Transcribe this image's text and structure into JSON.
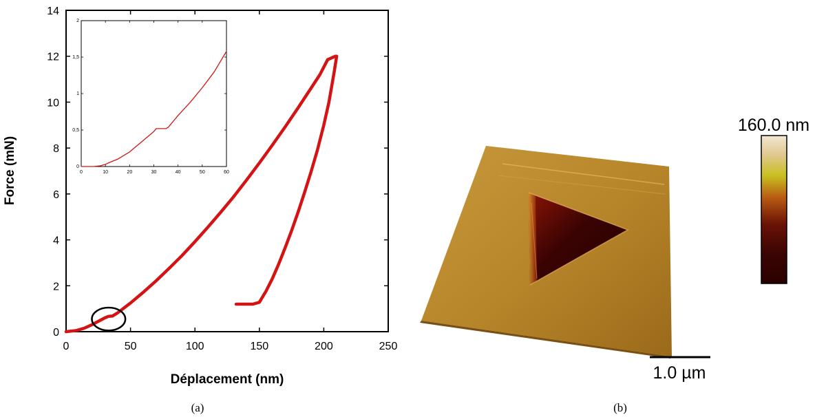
{
  "chart_data": [
    {
      "type": "line",
      "panel": "(a)",
      "xlabel": "Déplacement (nm)",
      "ylabel": "Force (mN)",
      "xlim": [
        0,
        250
      ],
      "ylim": [
        0,
        14
      ],
      "xticks": [
        0,
        50,
        100,
        150,
        200,
        250
      ],
      "yticks": [
        0,
        2,
        4,
        6,
        8,
        10,
        12,
        14
      ],
      "series": [
        {
          "color": "#d41414",
          "x": [
            0,
            8,
            14,
            20,
            25,
            30,
            33,
            36,
            40,
            50,
            60,
            70,
            80,
            90,
            100,
            110,
            120,
            130,
            140,
            150,
            160,
            170,
            180,
            190,
            197,
            203,
            209,
            210,
            208,
            204,
            200,
            195,
            190,
            185,
            180,
            175,
            170,
            165,
            160,
            155,
            150,
            145,
            140,
            136,
            132
          ],
          "y": [
            0,
            0.05,
            0.15,
            0.3,
            0.45,
            0.6,
            0.67,
            0.68,
            0.82,
            1.25,
            1.72,
            2.22,
            2.76,
            3.32,
            3.92,
            4.55,
            5.2,
            5.88,
            6.6,
            7.35,
            8.12,
            8.92,
            9.75,
            10.6,
            11.2,
            11.85,
            12.0,
            12.0,
            11.3,
            10.0,
            9.0,
            7.9,
            6.95,
            6.05,
            5.2,
            4.4,
            3.65,
            2.95,
            2.3,
            1.75,
            1.28,
            1.2,
            1.2,
            1.2,
            1.2
          ]
        }
      ],
      "annotations": [
        {
          "type": "ellipse",
          "cx": 33,
          "cy": 0.55,
          "rx": 13,
          "ry": 0.5
        }
      ]
    },
    {
      "type": "line",
      "inset_of": "(a)",
      "xlim": [
        0,
        60
      ],
      "ylim": [
        0,
        2
      ],
      "xticks": [
        0,
        10,
        20,
        30,
        40,
        50,
        60
      ],
      "yticks": [
        0,
        0.5,
        1,
        1.5,
        2
      ],
      "ytick_labels": [
        "0",
        "0,5",
        "1",
        "1,5",
        "2"
      ],
      "series": [
        {
          "color": "#d41414",
          "x": [
            0,
            5,
            8,
            10,
            12,
            15,
            20,
            25,
            30,
            31,
            33,
            35,
            36,
            40,
            45,
            50,
            55,
            60
          ],
          "y": [
            0,
            0.0,
            0.01,
            0.03,
            0.06,
            0.1,
            0.2,
            0.34,
            0.48,
            0.52,
            0.52,
            0.52,
            0.54,
            0.7,
            0.88,
            1.08,
            1.3,
            1.58
          ]
        }
      ]
    }
  ],
  "panel_a": {
    "caption": "(a)"
  },
  "panel_b": {
    "caption": "(b)",
    "colorbar_max_label": "160.0 nm",
    "scale_bar_label": "1.0 µm",
    "colors": {
      "surface_light": "#c99a3c",
      "surface_dark": "#9a6a18",
      "pit_dark": "#2a0202",
      "pit_mid": "#7a0e04"
    }
  }
}
